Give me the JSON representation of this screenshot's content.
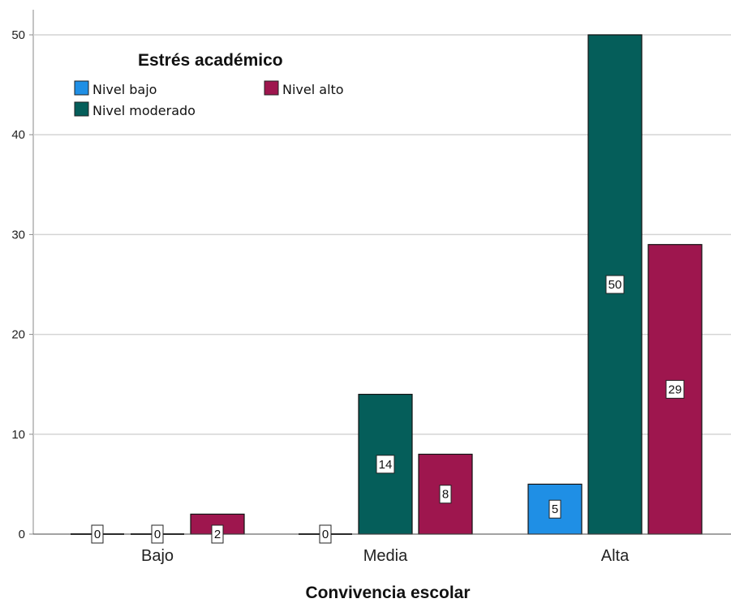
{
  "chart_data": {
    "type": "bar",
    "xlabel": "Convivencia escolar",
    "ylabel": "",
    "categories": [
      "Bajo",
      "Media",
      "Alta"
    ],
    "ylim": [
      0,
      52
    ],
    "yticks": [
      0,
      10,
      20,
      30,
      40,
      50
    ],
    "grid": true,
    "legend": {
      "title": "Estrés académico",
      "position": "top-left"
    },
    "series": [
      {
        "name": "Nivel bajo",
        "color": "#1f8fe5",
        "values": [
          0,
          0,
          5
        ]
      },
      {
        "name": "Nivel moderado",
        "color": "#055e5a",
        "values": [
          0,
          14,
          50
        ]
      },
      {
        "name": "Nivel alto",
        "color": "#9e164e",
        "values": [
          2,
          8,
          29
        ]
      }
    ]
  }
}
